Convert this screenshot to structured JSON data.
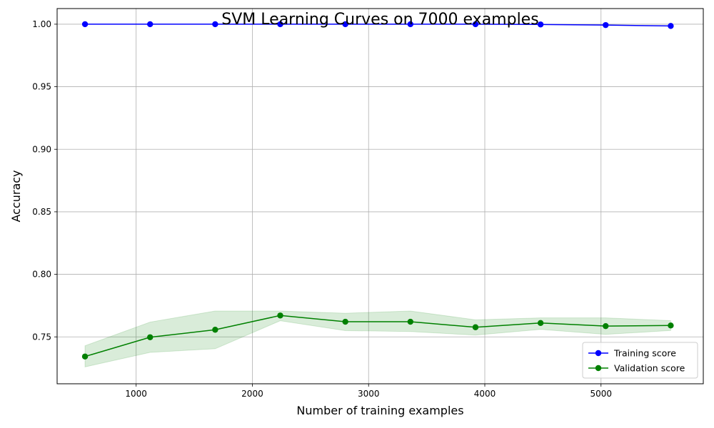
{
  "chart_data": {
    "type": "line",
    "title": "SVM Learning Curves on 7000 examples",
    "xlabel": "Number of training examples",
    "ylabel": "Accuracy",
    "xlim": [
      320,
      5880
    ],
    "ylim": [
      0.7125,
      1.0125
    ],
    "xticks": [
      1000,
      2000,
      3000,
      4000,
      5000
    ],
    "yticks": [
      0.75,
      0.8,
      0.85,
      0.9,
      0.95,
      1.0
    ],
    "grid": true,
    "legend_position": "bottom-right",
    "x": [
      560,
      1120,
      1680,
      2240,
      2800,
      3360,
      3920,
      4480,
      5040,
      5600
    ],
    "series": [
      {
        "name": "Training score",
        "color": "#0000ff",
        "values": [
          1.0,
          1.0,
          1.0,
          1.0,
          1.0,
          1.0,
          1.0,
          0.9998,
          0.9993,
          0.9986
        ]
      },
      {
        "name": "Validation score",
        "color": "#008000",
        "values": [
          0.7343,
          0.7497,
          0.7557,
          0.7671,
          0.7621,
          0.7621,
          0.7577,
          0.7611,
          0.7586,
          0.7591
        ],
        "band_upper": [
          0.7429,
          0.7618,
          0.7707,
          0.7707,
          0.7689,
          0.7707,
          0.7636,
          0.7652,
          0.7652,
          0.763
        ],
        "band_lower": [
          0.726,
          0.7376,
          0.7405,
          0.7629,
          0.755,
          0.7543,
          0.7514,
          0.756,
          0.752,
          0.7551
        ],
        "band_color": "#008000"
      }
    ]
  }
}
